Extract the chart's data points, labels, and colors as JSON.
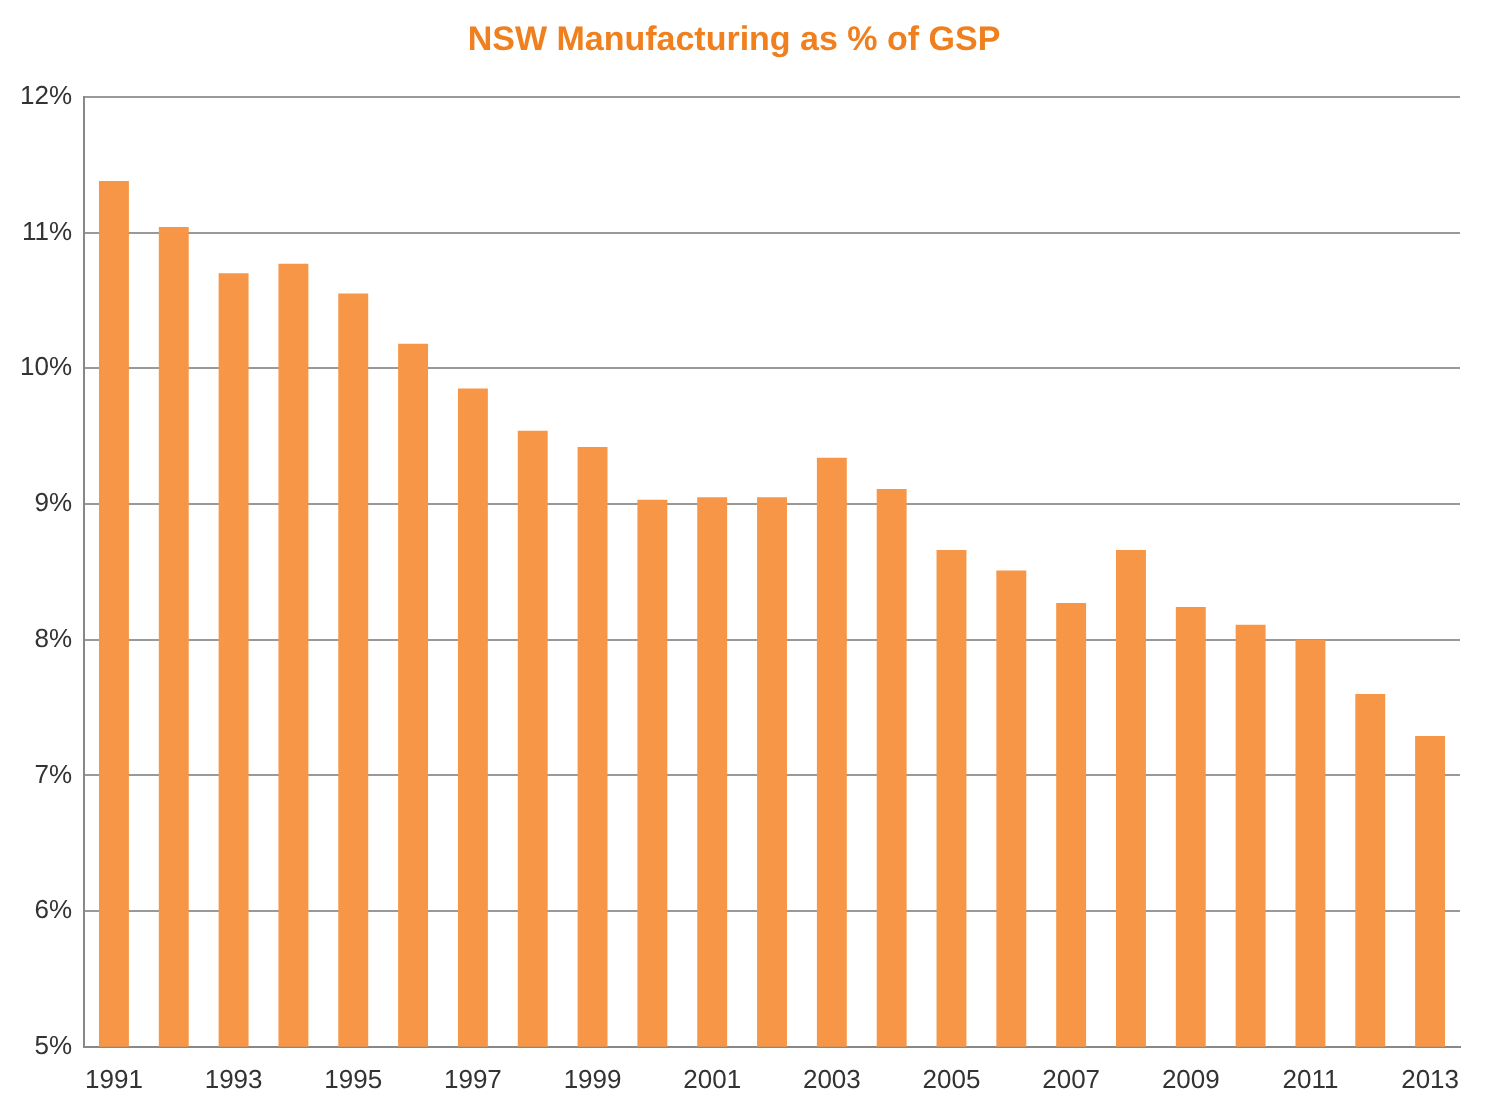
{
  "chart_data": {
    "type": "bar",
    "title": "NSW Manufacturing as % of GSP",
    "categories": [
      "1991",
      null,
      "1993",
      null,
      "1995",
      null,
      "1997",
      null,
      "1999",
      null,
      "2001",
      null,
      "2003",
      null,
      "2005",
      null,
      "2007",
      null,
      "2009",
      null,
      "2011",
      null,
      "2013"
    ],
    "values": [
      11.38,
      11.04,
      10.7,
      10.77,
      10.55,
      10.18,
      9.85,
      9.54,
      9.42,
      9.03,
      9.05,
      9.05,
      9.34,
      9.11,
      8.66,
      8.51,
      8.27,
      8.66,
      8.24,
      8.11,
      8.0,
      7.6,
      7.29
    ],
    "color": "#f79646",
    "ylim": [
      5,
      12
    ],
    "yticks": [
      {
        "value": 5,
        "label": "5%"
      },
      {
        "value": 6,
        "label": "6%"
      },
      {
        "value": 7,
        "label": "7%"
      },
      {
        "value": 8,
        "label": "8%"
      },
      {
        "value": 9,
        "label": "9%"
      },
      {
        "value": 10,
        "label": "10%"
      },
      {
        "value": 11,
        "label": "11%"
      },
      {
        "value": 12,
        "label": "12%"
      }
    ],
    "grid": "y",
    "legend": false
  }
}
